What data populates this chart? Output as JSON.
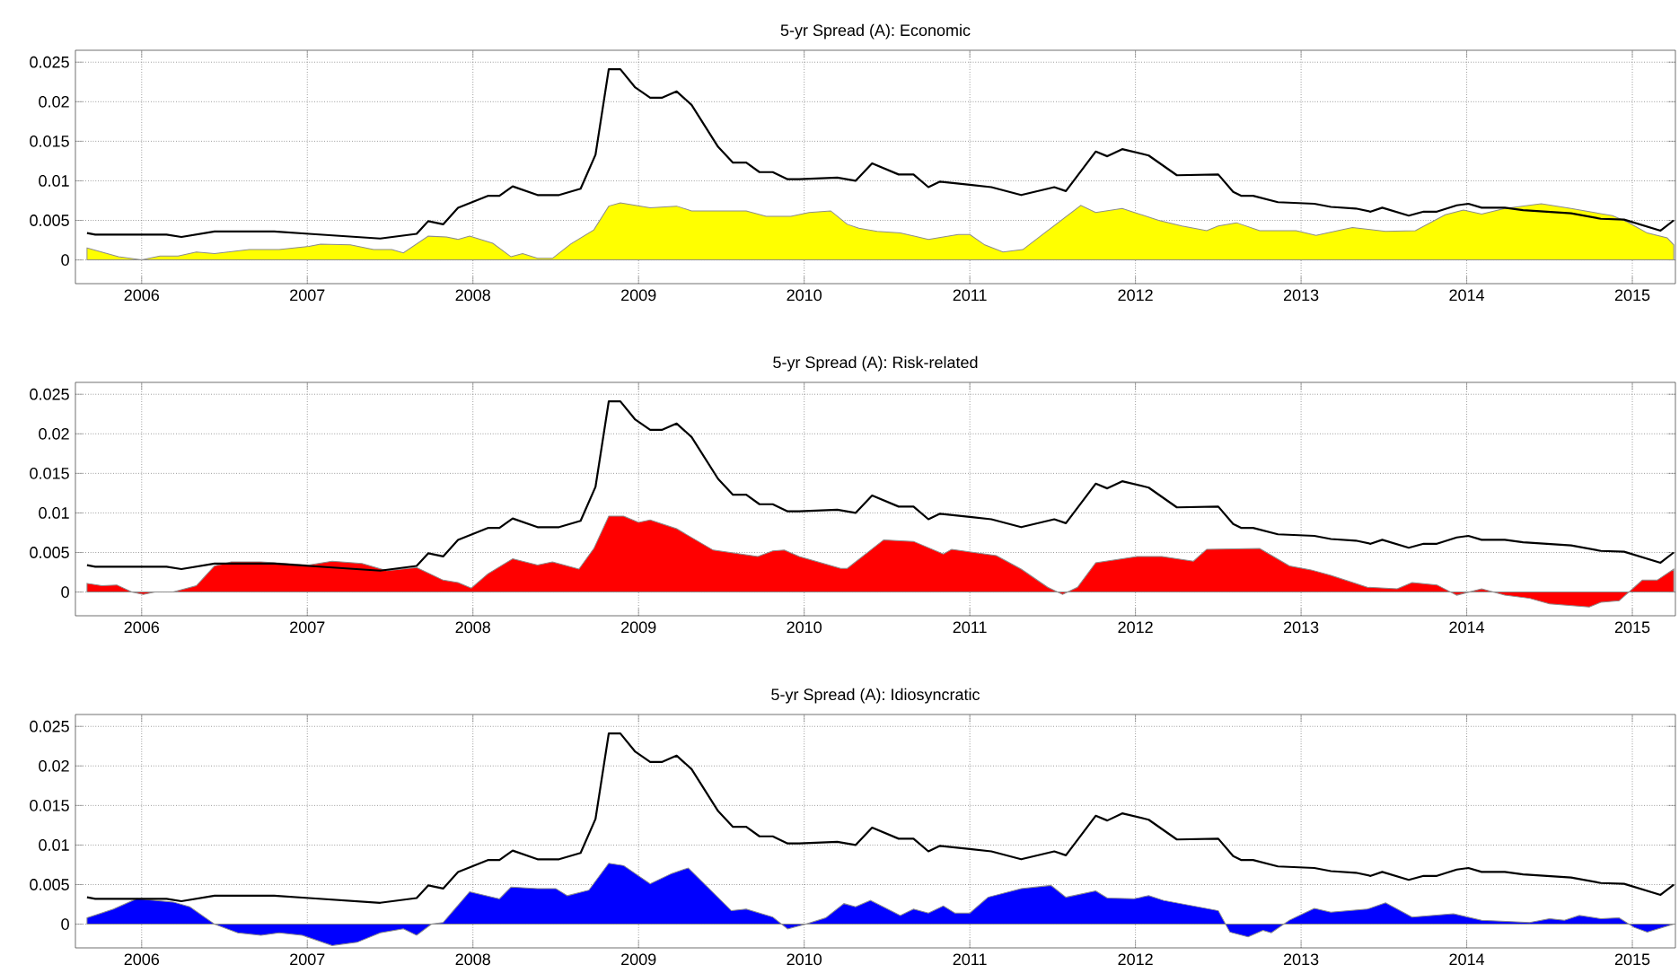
{
  "chart_data": [
    {
      "type": "area",
      "title": "5-yr Spread (A): Economic",
      "xlim": [
        2005.6,
        2015.26
      ],
      "xticks": [
        2006,
        2007,
        2008,
        2009,
        2010,
        2011,
        2012,
        2013,
        2014,
        2015
      ],
      "ylim": [
        -0.003,
        0.0265
      ],
      "yticks": [
        0,
        0.005,
        0.01,
        0.015,
        0.02,
        0.025
      ],
      "grid": true,
      "series": [
        {
          "type": "area",
          "color": "#ffff00",
          "x": [
            2005.67,
            2005.86,
            2006,
            2006.11,
            2006.22,
            2006.33,
            2006.44,
            2006.65,
            2006.83,
            2007.01,
            2007.08,
            2007.26,
            2007.4,
            2007.51,
            2007.58,
            2007.73,
            2007.84,
            2007.91,
            2007.98,
            2008.12,
            2008.23,
            2008.3,
            2008.39,
            2008.48,
            2008.59,
            2008.73,
            2008.82,
            2008.89,
            2009.07,
            2009.23,
            2009.32,
            2009.65,
            2009.77,
            2009.92,
            2010.03,
            2010.16,
            2010.26,
            2010.33,
            2010.44,
            2010.58,
            2010.75,
            2010.93,
            2011,
            2011.09,
            2011.2,
            2011.32,
            2011.47,
            2011.67,
            2011.76,
            2011.92,
            2012.14,
            2012.28,
            2012.43,
            2012.5,
            2012.61,
            2012.75,
            2012.97,
            2013.09,
            2013.31,
            2013.51,
            2013.69,
            2013.87,
            2013.98,
            2014.09,
            2014.23,
            2014.45,
            2014.63,
            2014.88,
            2014.97,
            2015.09,
            2015.21,
            2015.25
          ],
          "values": [
            0.0015,
            0.0004,
            0,
            0.0005,
            0.0005,
            0.001,
            0.0008,
            0.0013,
            0.0013,
            0.0017,
            0.002,
            0.0019,
            0.0013,
            0.0013,
            0.0009,
            0.003,
            0.0029,
            0.0026,
            0.003,
            0.0021,
            0.0004,
            0.0008,
            0.0002,
            0.0002,
            0.002,
            0.0038,
            0.0068,
            0.0072,
            0.0066,
            0.0068,
            0.0062,
            0.0062,
            0.0055,
            0.0055,
            0.006,
            0.0062,
            0.0045,
            0.004,
            0.0036,
            0.0034,
            0.0026,
            0.0032,
            0.0032,
            0.0019,
            0.001,
            0.0013,
            0.0037,
            0.0069,
            0.006,
            0.0065,
            0.005,
            0.0043,
            0.0037,
            0.0043,
            0.0047,
            0.0037,
            0.0037,
            0.0031,
            0.0041,
            0.0036,
            0.0037,
            0.0057,
            0.0063,
            0.0058,
            0.0065,
            0.0071,
            0.0065,
            0.0056,
            0.0048,
            0.0034,
            0.0028,
            0.0019
          ]
        },
        {
          "type": "line",
          "color": "#000000",
          "x": [
            2005.67,
            2005.72,
            2006.15,
            2006.24,
            2006.44,
            2006.8,
            2007.01,
            2007.44,
            2007.66,
            2007.73,
            2007.82,
            2007.91,
            2008.09,
            2008.16,
            2008.24,
            2008.39,
            2008.52,
            2008.65,
            2008.74,
            2008.82,
            2008.89,
            2008.98,
            2009.07,
            2009.14,
            2009.23,
            2009.32,
            2009.48,
            2009.57,
            2009.65,
            2009.73,
            2009.81,
            2009.9,
            2009.97,
            2010.2,
            2010.31,
            2010.41,
            2010.57,
            2010.66,
            2010.75,
            2010.82,
            2011,
            2011.13,
            2011.31,
            2011.51,
            2011.58,
            2011.76,
            2011.83,
            2011.92,
            2012.08,
            2012.25,
            2012.5,
            2012.59,
            2012.64,
            2012.71,
            2012.86,
            2013.08,
            2013.18,
            2013.33,
            2013.42,
            2013.49,
            2013.65,
            2013.74,
            2013.82,
            2013.94,
            2014.01,
            2014.09,
            2014.23,
            2014.34,
            2014.63,
            2014.81,
            2014.95,
            2015.17,
            2015.25
          ],
          "values": [
            0.0034,
            0.0032,
            0.0032,
            0.0029,
            0.0036,
            0.0036,
            0.0033,
            0.0027,
            0.0033,
            0.0049,
            0.0045,
            0.0066,
            0.0081,
            0.0081,
            0.0093,
            0.0082,
            0.0082,
            0.009,
            0.0133,
            0.0241,
            0.0241,
            0.0218,
            0.0205,
            0.0205,
            0.0213,
            0.0196,
            0.0143,
            0.0123,
            0.0123,
            0.0111,
            0.0111,
            0.0102,
            0.0102,
            0.0104,
            0.01,
            0.0122,
            0.0108,
            0.0108,
            0.0092,
            0.0099,
            0.0095,
            0.0092,
            0.0082,
            0.0092,
            0.0087,
            0.0137,
            0.0131,
            0.014,
            0.0132,
            0.0107,
            0.0108,
            0.0086,
            0.0081,
            0.0081,
            0.0073,
            0.0071,
            0.0067,
            0.0065,
            0.0061,
            0.0066,
            0.0056,
            0.0061,
            0.0061,
            0.0069,
            0.0071,
            0.0066,
            0.0066,
            0.0063,
            0.0059,
            0.0052,
            0.0051,
            0.0037,
            0.005
          ]
        }
      ]
    },
    {
      "type": "area",
      "title": "5-yr Spread (A): Risk-related",
      "xlim": [
        2005.6,
        2015.26
      ],
      "xticks": [
        2006,
        2007,
        2008,
        2009,
        2010,
        2011,
        2012,
        2013,
        2014,
        2015
      ],
      "ylim": [
        -0.003,
        0.0265
      ],
      "yticks": [
        0,
        0.005,
        0.01,
        0.015,
        0.02,
        0.025
      ],
      "grid": true,
      "series": [
        {
          "type": "area",
          "color": "#ff0000",
          "x": [
            2005.67,
            2005.76,
            2005.85,
            2005.94,
            2006.01,
            2006.08,
            2006.19,
            2006.33,
            2006.44,
            2006.54,
            2006.72,
            2007.01,
            2007.15,
            2007.33,
            2007.48,
            2007.66,
            2007.82,
            2007.91,
            2007.99,
            2008.09,
            2008.24,
            2008.39,
            2008.48,
            2008.64,
            2008.73,
            2008.82,
            2008.91,
            2009.0,
            2009.07,
            2009.23,
            2009.45,
            2009.59,
            2009.72,
            2009.81,
            2009.88,
            2009.97,
            2010.22,
            2010.26,
            2010.48,
            2010.66,
            2010.84,
            2010.89,
            2011.16,
            2011.31,
            2011.47,
            2011.56,
            2011.65,
            2011.76,
            2012.01,
            2012.16,
            2012.35,
            2012.43,
            2012.75,
            2012.93,
            2013.06,
            2013.18,
            2013.4,
            2013.58,
            2013.67,
            2013.82,
            2013.94,
            2014.09,
            2014.23,
            2014.38,
            2014.5,
            2014.74,
            2014.81,
            2014.92,
            2015.06,
            2015.15,
            2015.25
          ],
          "values": [
            0.0011,
            0.0008,
            0.0009,
            0,
            -0.0003,
            0,
            0,
            0.0008,
            0.0033,
            0.0038,
            0.0038,
            0.0034,
            0.0039,
            0.0036,
            0.0027,
            0.0031,
            0.0015,
            0.0012,
            0.0005,
            0.0023,
            0.0042,
            0.0034,
            0.0038,
            0.0029,
            0.0055,
            0.0096,
            0.0096,
            0.0088,
            0.0091,
            0.008,
            0.0053,
            0.0049,
            0.0045,
            0.0052,
            0.0053,
            0.0045,
            0.003,
            0.003,
            0.0066,
            0.0064,
            0.0048,
            0.0054,
            0.0046,
            0.0029,
            0.0006,
            -0.0003,
            0.0006,
            0.0037,
            0.0045,
            0.0045,
            0.0039,
            0.0054,
            0.0055,
            0.0033,
            0.0028,
            0.0021,
            0.0006,
            0.0004,
            0.0012,
            0.0009,
            -0.0004,
            0.0004,
            -0.0004,
            -0.0008,
            -0.0015,
            -0.0019,
            -0.0013,
            -0.0011,
            0.0015,
            0.0015,
            0.0029
          ]
        },
        {
          "type": "line",
          "color": "#000000",
          "x": [
            2005.67,
            2005.72,
            2006.15,
            2006.24,
            2006.44,
            2006.8,
            2007.01,
            2007.44,
            2007.66,
            2007.73,
            2007.82,
            2007.91,
            2008.09,
            2008.16,
            2008.24,
            2008.39,
            2008.52,
            2008.65,
            2008.74,
            2008.82,
            2008.89,
            2008.98,
            2009.07,
            2009.14,
            2009.23,
            2009.32,
            2009.48,
            2009.57,
            2009.65,
            2009.73,
            2009.81,
            2009.9,
            2009.97,
            2010.2,
            2010.31,
            2010.41,
            2010.57,
            2010.66,
            2010.75,
            2010.82,
            2011,
            2011.13,
            2011.31,
            2011.51,
            2011.58,
            2011.76,
            2011.83,
            2011.92,
            2012.08,
            2012.25,
            2012.5,
            2012.59,
            2012.64,
            2012.71,
            2012.86,
            2013.08,
            2013.18,
            2013.33,
            2013.42,
            2013.49,
            2013.65,
            2013.74,
            2013.82,
            2013.94,
            2014.01,
            2014.09,
            2014.23,
            2014.34,
            2014.63,
            2014.81,
            2014.95,
            2015.17,
            2015.25
          ],
          "values": [
            0.0034,
            0.0032,
            0.0032,
            0.0029,
            0.0036,
            0.0036,
            0.0033,
            0.0027,
            0.0033,
            0.0049,
            0.0045,
            0.0066,
            0.0081,
            0.0081,
            0.0093,
            0.0082,
            0.0082,
            0.009,
            0.0133,
            0.0241,
            0.0241,
            0.0218,
            0.0205,
            0.0205,
            0.0213,
            0.0196,
            0.0143,
            0.0123,
            0.0123,
            0.0111,
            0.0111,
            0.0102,
            0.0102,
            0.0104,
            0.01,
            0.0122,
            0.0108,
            0.0108,
            0.0092,
            0.0099,
            0.0095,
            0.0092,
            0.0082,
            0.0092,
            0.0087,
            0.0137,
            0.0131,
            0.014,
            0.0132,
            0.0107,
            0.0108,
            0.0086,
            0.0081,
            0.0081,
            0.0073,
            0.0071,
            0.0067,
            0.0065,
            0.0061,
            0.0066,
            0.0056,
            0.0061,
            0.0061,
            0.0069,
            0.0071,
            0.0066,
            0.0066,
            0.0063,
            0.0059,
            0.0052,
            0.0051,
            0.0037,
            0.005
          ]
        }
      ]
    },
    {
      "type": "area",
      "title": "5-yr Spread (A): Idiosyncratic",
      "xlim": [
        2005.6,
        2015.26
      ],
      "xticks": [
        2006,
        2007,
        2008,
        2009,
        2010,
        2011,
        2012,
        2013,
        2014,
        2015
      ],
      "ylim": [
        -0.003,
        0.0265
      ],
      "yticks": [
        0,
        0.005,
        0.01,
        0.015,
        0.02,
        0.025
      ],
      "grid": true,
      "series": [
        {
          "type": "area",
          "color": "#0000ff",
          "x": [
            2005.67,
            2005.83,
            2005.97,
            2006.19,
            2006.29,
            2006.44,
            2006.58,
            2006.72,
            2006.83,
            2006.97,
            2007.15,
            2007.3,
            2007.44,
            2007.58,
            2007.66,
            2007.75,
            2007.82,
            2007.98,
            2008.16,
            2008.23,
            2008.39,
            2008.5,
            2008.57,
            2008.7,
            2008.82,
            2008.91,
            2009.07,
            2009.2,
            2009.3,
            2009.56,
            2009.65,
            2009.81,
            2009.9,
            2010.01,
            2010.13,
            2010.24,
            2010.31,
            2010.4,
            2010.58,
            2010.66,
            2010.75,
            2010.84,
            2010.91,
            2011,
            2011.11,
            2011.31,
            2011.49,
            2011.58,
            2011.76,
            2011.83,
            2011.99,
            2012.08,
            2012.17,
            2012.5,
            2012.57,
            2012.68,
            2012.77,
            2012.82,
            2012.93,
            2013.08,
            2013.18,
            2013.4,
            2013.51,
            2013.67,
            2013.92,
            2014.09,
            2014.38,
            2014.5,
            2014.59,
            2014.68,
            2014.81,
            2014.92,
            2015.01,
            2015.09,
            2015.25
          ],
          "values": [
            0.0008,
            0.0019,
            0.0032,
            0.0028,
            0.0022,
            0,
            -0.0011,
            -0.0014,
            -0.0011,
            -0.0014,
            -0.0027,
            -0.0023,
            -0.0011,
            -0.0006,
            -0.0014,
            0,
            0.0002,
            0.0041,
            0.0032,
            0.0047,
            0.0045,
            0.0045,
            0.0036,
            0.0043,
            0.0077,
            0.0074,
            0.0051,
            0.0064,
            0.0071,
            0.0017,
            0.0019,
            0.0009,
            -0.0006,
            0,
            0.0008,
            0.0026,
            0.0022,
            0.003,
            0.0011,
            0.0019,
            0.0014,
            0.0023,
            0.0014,
            0.0014,
            0.0034,
            0.0045,
            0.0049,
            0.0034,
            0.0042,
            0.0033,
            0.0032,
            0.0036,
            0.003,
            0.0017,
            -0.001,
            -0.0016,
            -0.0008,
            -0.0011,
            0.0005,
            0.002,
            0.0015,
            0.0019,
            0.0027,
            0.0009,
            0.0013,
            0.0005,
            0.0002,
            0.0007,
            0.0005,
            0.0011,
            0.0007,
            0.0008,
            -0.0004,
            -0.001,
            0
          ]
        },
        {
          "type": "line",
          "color": "#000000",
          "x": [
            2005.67,
            2005.72,
            2006.15,
            2006.24,
            2006.44,
            2006.8,
            2007.01,
            2007.44,
            2007.66,
            2007.73,
            2007.82,
            2007.91,
            2008.09,
            2008.16,
            2008.24,
            2008.39,
            2008.52,
            2008.65,
            2008.74,
            2008.82,
            2008.89,
            2008.98,
            2009.07,
            2009.14,
            2009.23,
            2009.32,
            2009.48,
            2009.57,
            2009.65,
            2009.73,
            2009.81,
            2009.9,
            2009.97,
            2010.2,
            2010.31,
            2010.41,
            2010.57,
            2010.66,
            2010.75,
            2010.82,
            2011,
            2011.13,
            2011.31,
            2011.51,
            2011.58,
            2011.76,
            2011.83,
            2011.92,
            2012.08,
            2012.25,
            2012.5,
            2012.59,
            2012.64,
            2012.71,
            2012.86,
            2013.08,
            2013.18,
            2013.33,
            2013.42,
            2013.49,
            2013.65,
            2013.74,
            2013.82,
            2013.94,
            2014.01,
            2014.09,
            2014.23,
            2014.34,
            2014.63,
            2014.81,
            2014.95,
            2015.17,
            2015.25
          ],
          "values": [
            0.0034,
            0.0032,
            0.0032,
            0.0029,
            0.0036,
            0.0036,
            0.0033,
            0.0027,
            0.0033,
            0.0049,
            0.0045,
            0.0066,
            0.0081,
            0.0081,
            0.0093,
            0.0082,
            0.0082,
            0.009,
            0.0133,
            0.0241,
            0.0241,
            0.0218,
            0.0205,
            0.0205,
            0.0213,
            0.0196,
            0.0143,
            0.0123,
            0.0123,
            0.0111,
            0.0111,
            0.0102,
            0.0102,
            0.0104,
            0.01,
            0.0122,
            0.0108,
            0.0108,
            0.0092,
            0.0099,
            0.0095,
            0.0092,
            0.0082,
            0.0092,
            0.0087,
            0.0137,
            0.0131,
            0.014,
            0.0132,
            0.0107,
            0.0108,
            0.0086,
            0.0081,
            0.0081,
            0.0073,
            0.0071,
            0.0067,
            0.0065,
            0.0061,
            0.0066,
            0.0056,
            0.0061,
            0.0061,
            0.0069,
            0.0071,
            0.0066,
            0.0066,
            0.0063,
            0.0059,
            0.0052,
            0.0051,
            0.0037,
            0.005
          ]
        }
      ]
    }
  ]
}
